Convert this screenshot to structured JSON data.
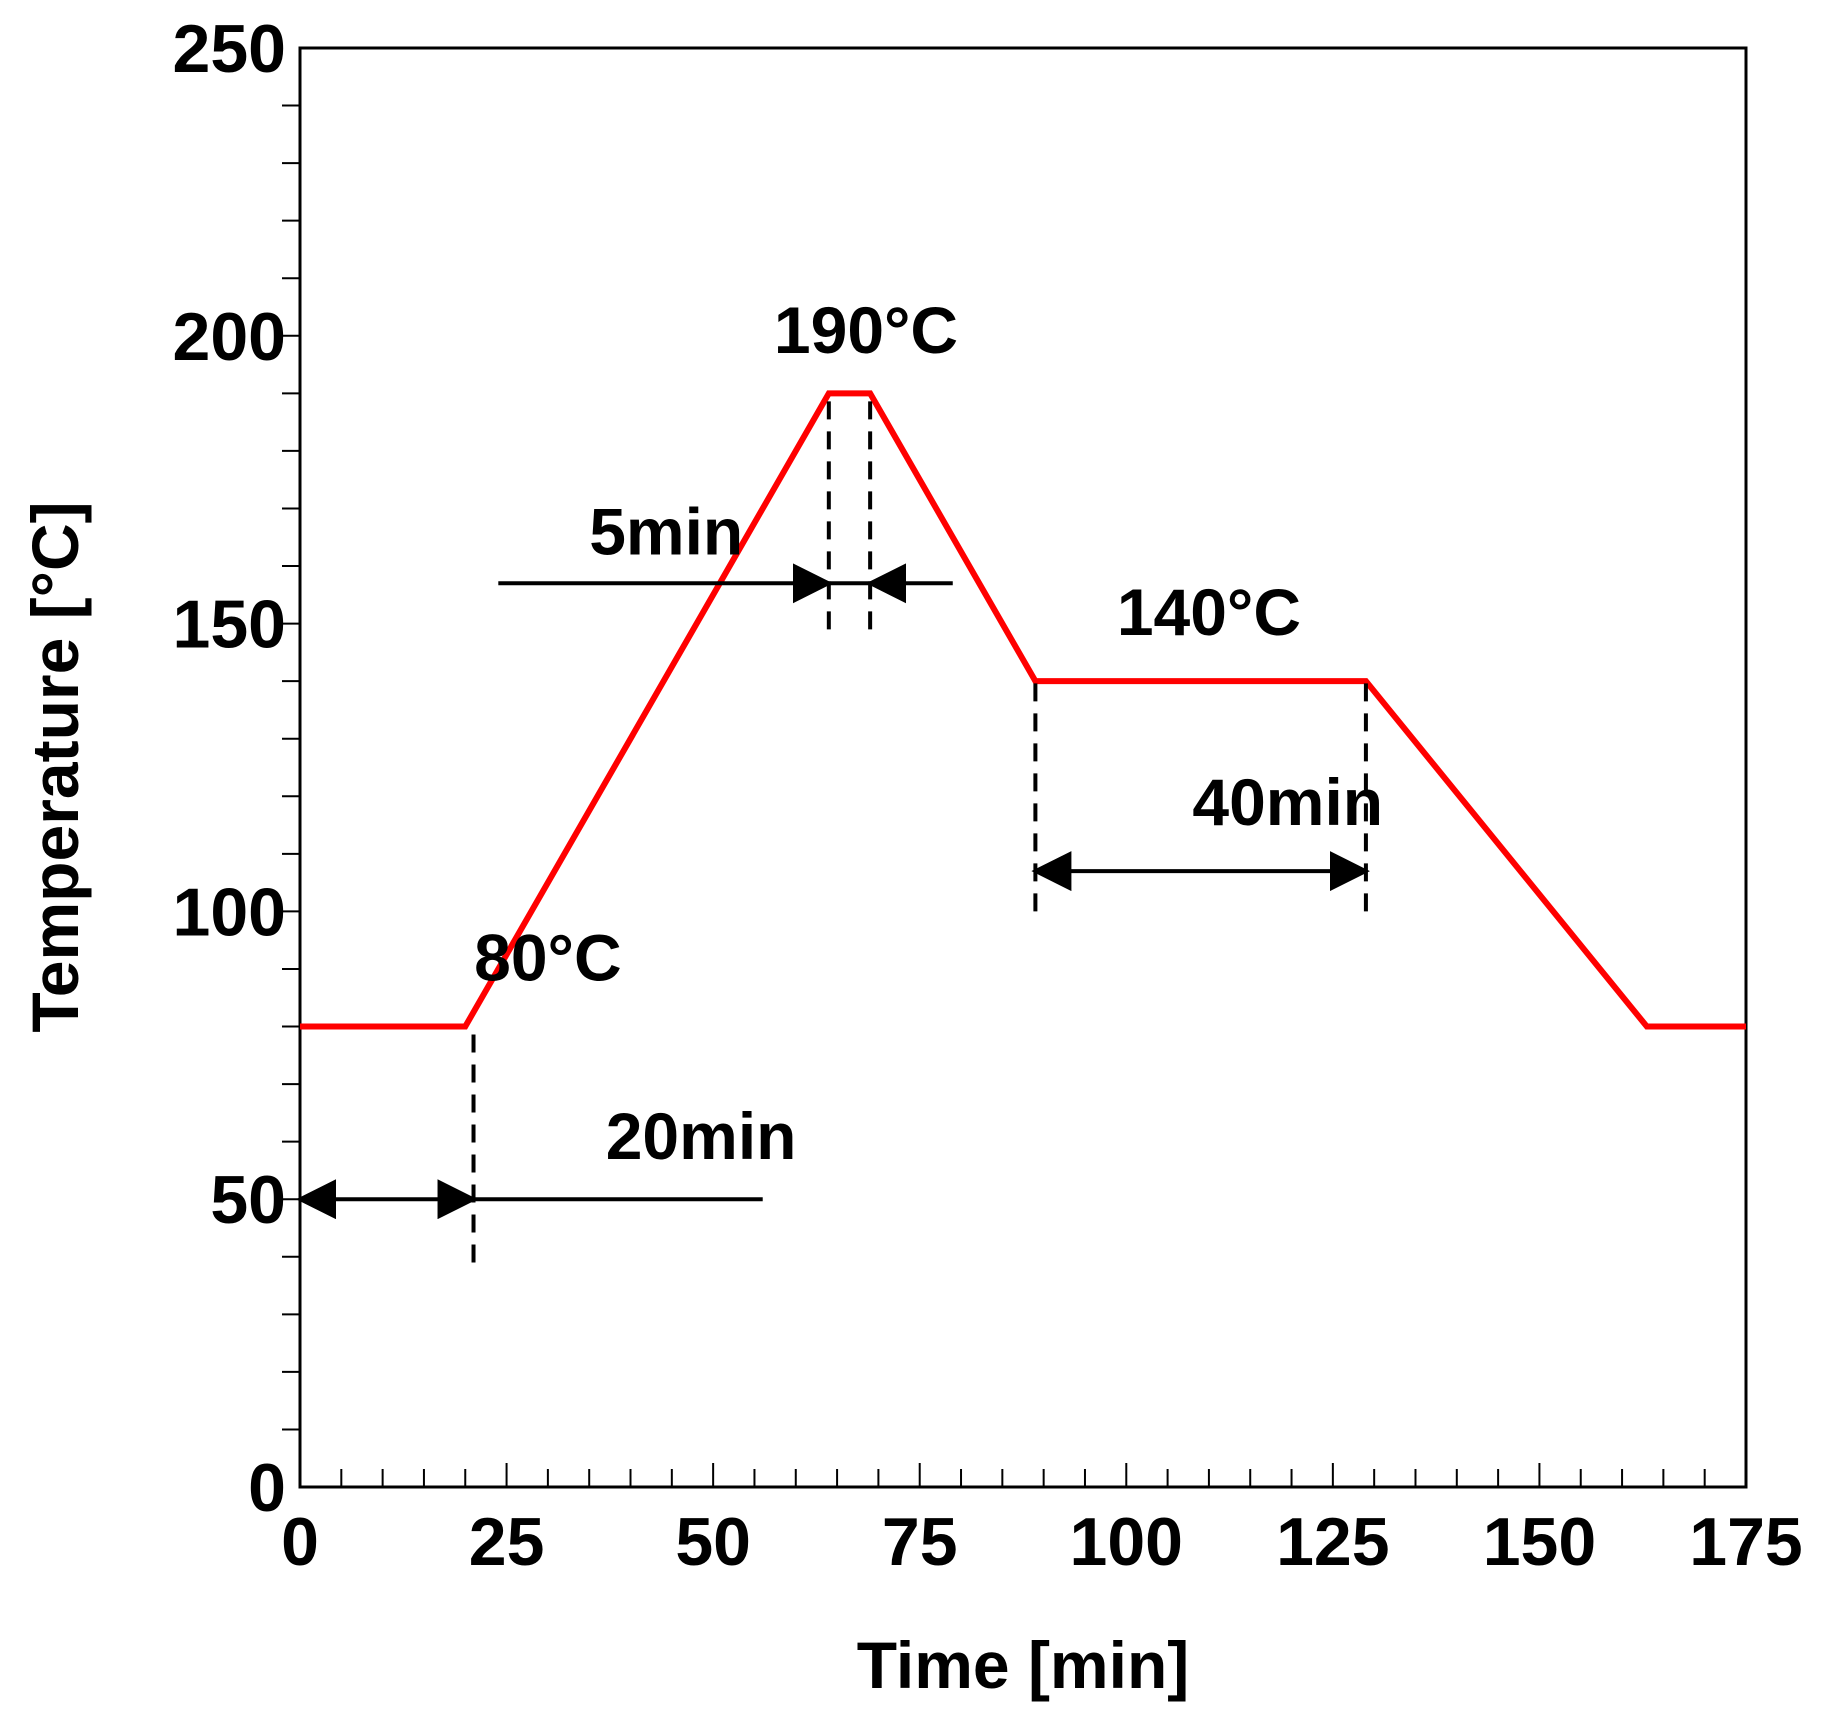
{
  "chart_data": {
    "type": "line",
    "title": "",
    "xlabel": "Time [min]",
    "ylabel": "Temperature [°C]",
    "xlim": [
      0,
      175
    ],
    "ylim": [
      0,
      250
    ],
    "x_ticks": [
      0,
      25,
      50,
      75,
      100,
      125,
      150,
      175
    ],
    "y_ticks": [
      0,
      50,
      100,
      150,
      200,
      250
    ],
    "x_minor_step": 5,
    "y_minor_step": 10,
    "grid": false,
    "series": [
      {
        "color": "#ff0000",
        "points": [
          [
            0,
            80
          ],
          [
            20,
            80
          ],
          [
            64,
            190
          ],
          [
            69,
            190
          ],
          [
            89,
            140
          ],
          [
            129,
            140
          ],
          [
            163,
            80
          ],
          [
            175,
            80
          ]
        ]
      }
    ],
    "annotations": {
      "temperatures": [
        {
          "text": "190°C",
          "x": 68.5,
          "y": 197
        },
        {
          "text": "140°C",
          "x": 110,
          "y": 148
        },
        {
          "text": "80°C",
          "x": 30,
          "y": 88
        }
      ],
      "durations": [
        {
          "text": "5min",
          "label_pos": [
            35,
            162
          ],
          "guides": [
            {
              "x": 64,
              "y1": 149,
              "y2": 190
            },
            {
              "x": 69,
              "y1": 149,
              "y2": 190
            }
          ],
          "arrows": [
            {
              "type": "double_inward",
              "left_tail_x": 24,
              "left_head_x": 64,
              "right_head_x": 69,
              "right_tail_x": 79,
              "y": 157
            }
          ]
        },
        {
          "text": "40min",
          "label_pos": [
            108,
            115
          ],
          "guides": [
            {
              "x": 89,
              "y1": 100,
              "y2": 140
            },
            {
              "x": 129,
              "y1": 100,
              "y2": 140
            }
          ],
          "arrows": [
            {
              "type": "double_outward",
              "x1": 89,
              "x2": 129,
              "y": 107
            }
          ]
        },
        {
          "text": "20min",
          "label_pos": [
            37,
            57
          ],
          "guides": [
            {
              "x": 21,
              "y1": 39,
              "y2": 79
            }
          ],
          "arrows": [
            {
              "type": "double_outward",
              "x1": 0,
              "x2": 21,
              "y": 50
            },
            {
              "type": "line",
              "x1": 21,
              "x2": 56,
              "y": 50
            }
          ]
        }
      ]
    }
  }
}
